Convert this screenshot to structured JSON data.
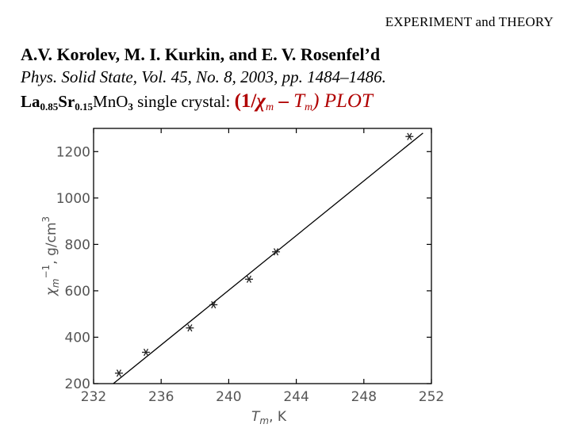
{
  "header": {
    "text": "EXPERIMENT and THEORY"
  },
  "citation": {
    "authors": "A.V. Korolev, M. I. Kurkin, and E. V. Rosenfel’d",
    "journal": "Phys. Solid State, Vol. 45, No. 8, 2003, pp. 1484–1486."
  },
  "subject": {
    "compound_parts": [
      {
        "text": "La",
        "sub": "0.85"
      },
      {
        "text": "Sr",
        "sub": "0.15"
      },
      {
        "text": "MnO",
        "sub": "3"
      }
    ],
    "description": " single crystal: ",
    "plot_title": {
      "open": "(1/",
      "chi": "χ",
      "chi_sub": "m",
      "dash": " – ",
      "t": "T",
      "t_sub": "m",
      "close": ") PLOT"
    }
  },
  "chart_data": {
    "type": "scatter",
    "xlabel": "Tm, K",
    "ylabel": "χm−1, g/cm3",
    "xlim": [
      232,
      252
    ],
    "ylim": [
      200,
      1300
    ],
    "x_ticks": [
      232,
      236,
      240,
      244,
      248,
      252
    ],
    "y_ticks": [
      200,
      400,
      600,
      800,
      1000,
      1200
    ],
    "series": [
      {
        "marker": "asterisk",
        "points": [
          {
            "x": 233.5,
            "y": 245
          },
          {
            "x": 235.1,
            "y": 335
          },
          {
            "x": 237.7,
            "y": 440
          },
          {
            "x": 239.1,
            "y": 540
          },
          {
            "x": 241.2,
            "y": 650
          },
          {
            "x": 242.8,
            "y": 768
          },
          {
            "x": 250.7,
            "y": 1265
          }
        ]
      }
    ],
    "fit_line": {
      "x": [
        233.0,
        251.5
      ],
      "y": [
        190,
        1280
      ]
    },
    "grid": false
  }
}
